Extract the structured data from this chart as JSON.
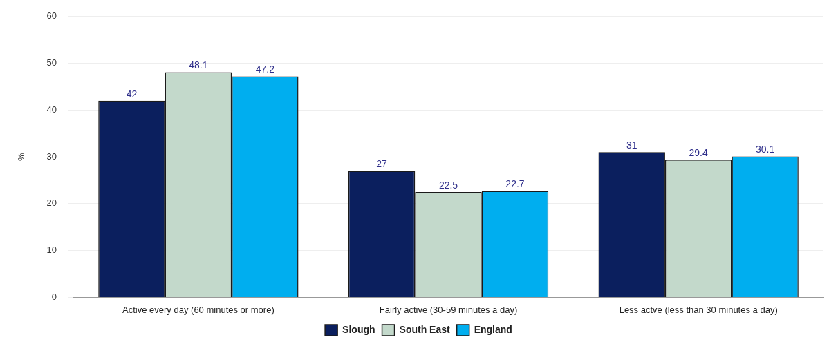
{
  "chart_data": {
    "type": "bar",
    "ylabel": "%",
    "categories": [
      "Active every day (60 minutes or more)",
      "Fairly active (30-59 minutes a day)",
      "Less actve (less than 30 minutes a day)"
    ],
    "series": [
      {
        "name": "Slough",
        "color": "#0b1f5e",
        "values": [
          42,
          27,
          31
        ]
      },
      {
        "name": "South East",
        "color": "#c3d9cb",
        "values": [
          48.1,
          22.5,
          29.4
        ]
      },
      {
        "name": "England",
        "color": "#00aeef",
        "values": [
          47.2,
          22.7,
          30.1
        ]
      }
    ],
    "ylim": [
      0,
      60
    ],
    "yticks": [
      0,
      10,
      20,
      30,
      40,
      50,
      60
    ],
    "grid": "y",
    "legend": "bottom",
    "data_labels": true
  }
}
